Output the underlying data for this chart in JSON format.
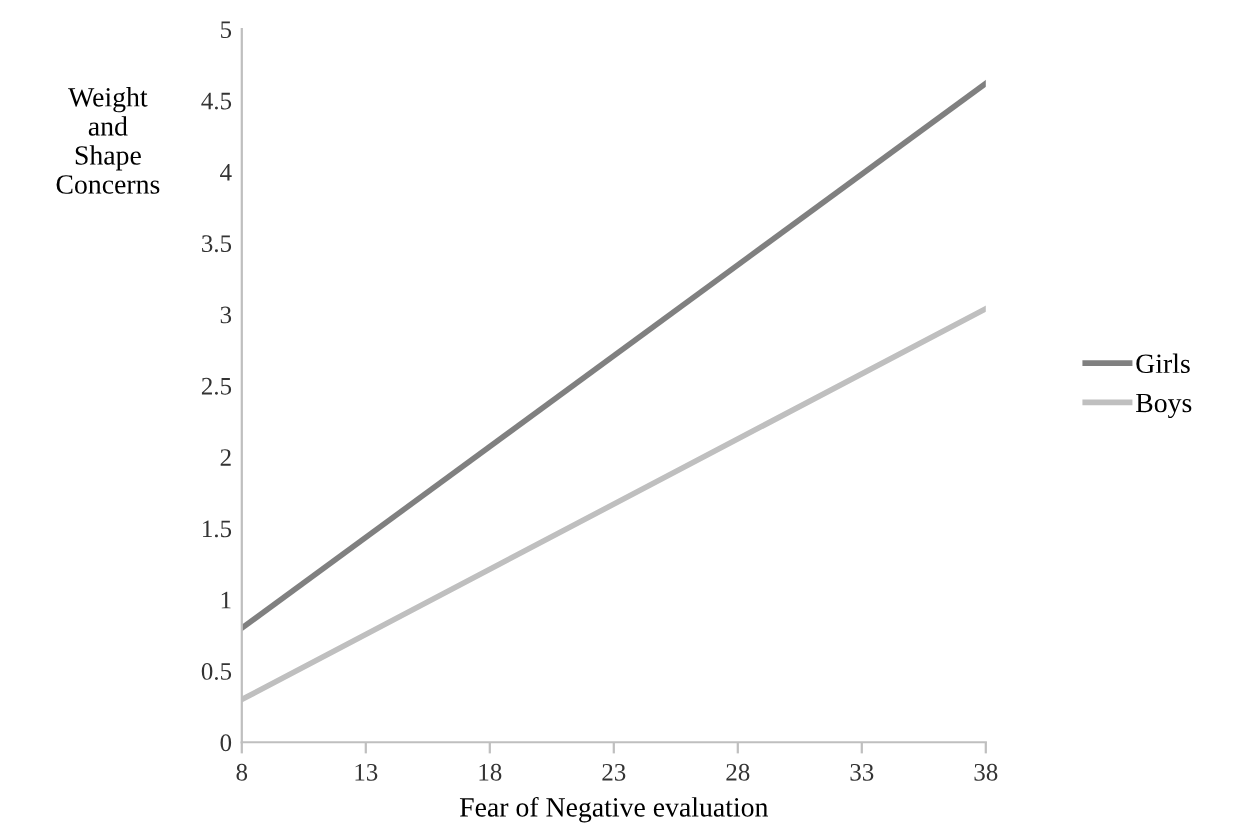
{
  "chart_data": {
    "type": "line",
    "xlabel": "Fear of Negative evaluation",
    "ylabel": "Weight\nand\nShape\nConcerns",
    "x": [
      8,
      38
    ],
    "xlim": [
      8,
      38
    ],
    "xticks": [
      8,
      13,
      18,
      23,
      28,
      33,
      38
    ],
    "ylim": [
      0,
      5
    ],
    "yticks": [
      0,
      0.5,
      1,
      1.5,
      2,
      2.5,
      3,
      3.5,
      4,
      4.5,
      5
    ],
    "grid": false,
    "legend": "right",
    "marker": "none",
    "line_style": "solid",
    "series": [
      {
        "name": "Girls",
        "color": "#808080",
        "values": [
          0.8,
          4.62
        ]
      },
      {
        "name": "Boys",
        "color": "#bfbfbf",
        "values": [
          0.3,
          3.04
        ]
      }
    ]
  }
}
